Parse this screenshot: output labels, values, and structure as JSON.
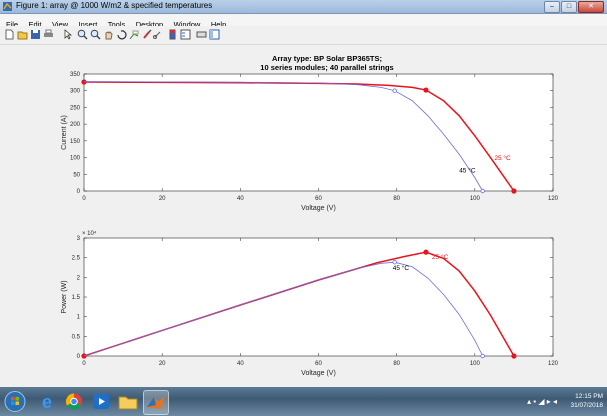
{
  "window": {
    "title": "Figure 1: array @ 1000 W/m2 & specified temperatures",
    "buttons": [
      "–",
      "□",
      "✕"
    ]
  },
  "menu": [
    "File",
    "Edit",
    "View",
    "Insert",
    "Tools",
    "Desktop",
    "Window",
    "Help"
  ],
  "toolbar_icons": [
    "new-icon",
    "open-icon",
    "save-icon",
    "print-icon",
    "pointer-icon",
    "zoom-in-icon",
    "zoom-out-icon",
    "pan-icon",
    "rotate-icon",
    "data-cursor-icon",
    "brush-icon",
    "link-icon",
    "colorbar-icon",
    "legend-icon",
    "hide-plot-tools-icon",
    "show-plot-tools-icon"
  ],
  "taskbar": {
    "apps": [
      "start-orb-icon",
      "ie-icon",
      "chrome-icon",
      "media-icon",
      "explorer-icon",
      "matlab-icon"
    ],
    "time": "12:15 PM",
    "date": "31/07/2018"
  },
  "chart_data": [
    {
      "type": "line",
      "title": "Array type: BP Solar BP365TS;",
      "subtitle": "10 series modules; 40 parallel strings",
      "xlabel": "Voltage (V)",
      "ylabel": "Current (A)",
      "xlim": [
        0,
        120
      ],
      "ylim": [
        0,
        350
      ],
      "xticks": [
        0,
        20,
        40,
        60,
        80,
        100,
        120
      ],
      "yticks": [
        0,
        50,
        100,
        150,
        200,
        250,
        300,
        350
      ],
      "grid": false,
      "series": [
        {
          "name": "25 °C",
          "color": "#e8141b",
          "x": [
            0,
            20,
            40,
            60,
            70,
            78,
            84,
            87.5,
            92,
            96,
            100,
            104,
            107,
            110
          ],
          "y": [
            326,
            325,
            324,
            322,
            320,
            316,
            310,
            302,
            270,
            225,
            165,
            100,
            50,
            0
          ],
          "markers": [
            [
              0,
              326
            ],
            [
              87.5,
              302
            ],
            [
              110,
              0
            ]
          ]
        },
        {
          "name": "45 °C",
          "color": "#6d6de0",
          "x": [
            0,
            20,
            40,
            60,
            70,
            76,
            79.5,
            84,
            88,
            92,
            96,
            100,
            102
          ],
          "y": [
            327,
            326.5,
            325.5,
            323,
            318,
            310,
            300,
            270,
            225,
            170,
            110,
            40,
            0
          ],
          "markers": [
            [
              79.5,
              300
            ],
            [
              102,
              0
            ]
          ]
        }
      ],
      "annotations": [
        {
          "text": "25 °C",
          "x": 105,
          "y": 92,
          "color": "#e8141b"
        },
        {
          "text": "45 °C",
          "x": 96,
          "y": 55,
          "color": "#000000"
        }
      ]
    },
    {
      "type": "line",
      "title": "",
      "xlabel": "Voltage (V)",
      "ylabel": "Power (W)",
      "xlim": [
        0,
        120
      ],
      "ylim": [
        0,
        30000
      ],
      "xticks": [
        0,
        20,
        40,
        60,
        80,
        100,
        120
      ],
      "yticks": [
        0,
        0.5,
        1,
        1.5,
        2,
        2.5,
        3
      ],
      "exponent_label": "× 10⁴",
      "grid": false,
      "series": [
        {
          "name": "25 °C",
          "color": "#e8141b",
          "x": [
            0,
            20,
            40,
            60,
            75,
            82,
            87.5,
            92,
            96,
            100,
            104,
            110
          ],
          "y": [
            0,
            6500,
            12960,
            19320,
            23700,
            25300,
            26400,
            24800,
            21600,
            16500,
            10400,
            0
          ],
          "markers": [
            [
              0,
              0
            ],
            [
              87.5,
              26400
            ],
            [
              110,
              0
            ]
          ]
        },
        {
          "name": "45 °C",
          "color": "#6d6de0",
          "x": [
            0,
            20,
            40,
            60,
            70,
            76,
            79.5,
            84,
            88,
            92,
            96,
            100,
            102
          ],
          "y": [
            0,
            6500,
            13000,
            19380,
            22260,
            23560,
            23850,
            22680,
            19800,
            15640,
            10560,
            4000,
            0
          ],
          "markers": [
            [
              79.5,
              23850
            ],
            [
              102,
              0
            ]
          ]
        }
      ],
      "annotations": [
        {
          "text": "25 °C",
          "x": 89,
          "y": 24700,
          "color": "#e8141b"
        },
        {
          "text": "45 °C",
          "x": 79,
          "y": 21900,
          "color": "#000000"
        }
      ]
    }
  ]
}
